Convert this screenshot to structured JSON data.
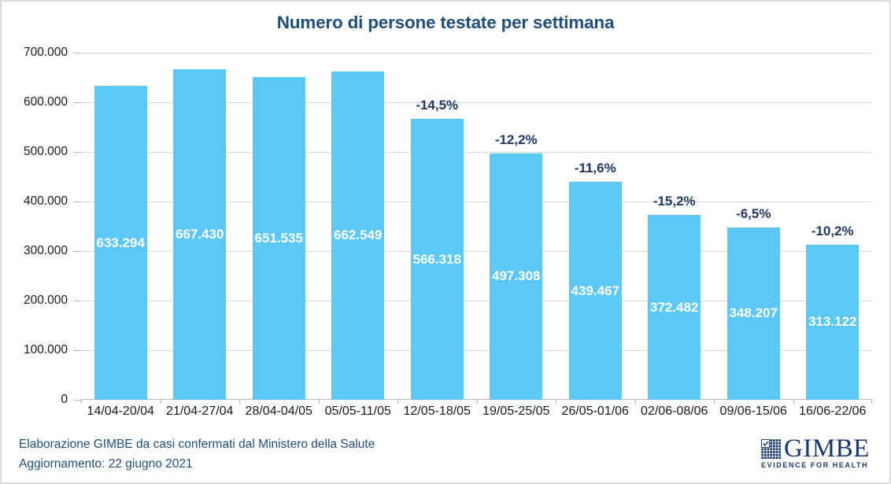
{
  "page": {
    "background": "#FFFFFF",
    "border_color": "#DCDCDC"
  },
  "chart_data": {
    "type": "bar",
    "title": "Numero di persone testate per settimana",
    "categories": [
      "14/04-20/04",
      "21/04-27/04",
      "28/04-04/05",
      "05/05-11/05",
      "12/05-18/05",
      "19/05-25/05",
      "26/05-01/06",
      "02/06-08/06",
      "09/06-15/06",
      "16/06-22/06"
    ],
    "values": [
      633294,
      667430,
      651535,
      662549,
      566318,
      497308,
      439467,
      372482,
      348207,
      313122
    ],
    "bar_labels": [
      "633.294",
      "667.430",
      "651.535",
      "662.549",
      "566.318",
      "497.308",
      "439.467",
      "372.482",
      "348.207",
      "313.122"
    ],
    "pct_change_labels": [
      "",
      "",
      "",
      "",
      "-14,5%",
      "-12,2%",
      "-11,6%",
      "-15,2%",
      "-6,5%",
      "-10,2%"
    ],
    "xlabel": "",
    "ylabel": "",
    "ylim": [
      0,
      700000
    ],
    "yticks": [
      0,
      100000,
      200000,
      300000,
      400000,
      500000,
      600000,
      700000
    ],
    "ytick_labels": [
      "0",
      "100.000",
      "200.000",
      "300.000",
      "400.000",
      "500.000",
      "600.000",
      "700.000"
    ],
    "grid": true,
    "legend_position": "none",
    "colors": {
      "bar": "#5BC8F7",
      "title": "#1F4E79",
      "value_label": "#FFFFFF",
      "pct_label": "#1F3864",
      "gridline": "#D9D9D9",
      "axis": "#B3B3B3",
      "tick_label": "#1A1A1A"
    }
  },
  "footer": {
    "source": "Elaborazione GIMBE da casi confermati dal Ministero della Salute",
    "update": "Aggiornamento:  22 giugno  2021",
    "color": "#1F4E79"
  },
  "logo": {
    "wordmark": "GIMBE",
    "tagline": "EVIDENCE FOR HEALTH",
    "icon": "check-grid-icon",
    "color": "#17376A"
  }
}
